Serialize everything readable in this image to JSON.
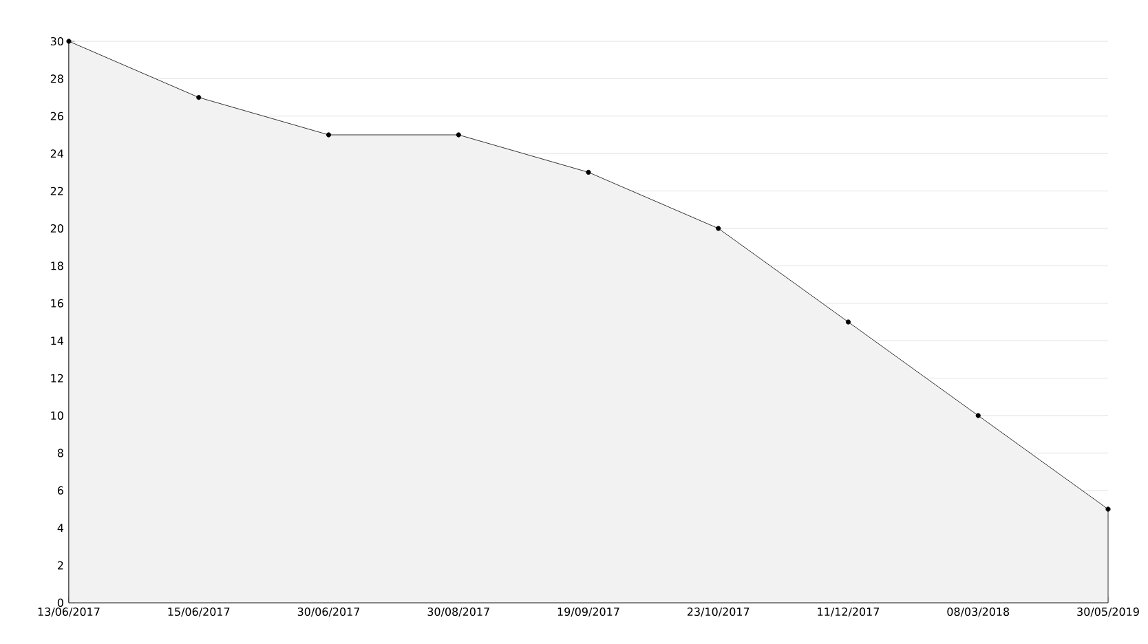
{
  "chart_data": {
    "type": "area",
    "categories": [
      "13/06/2017",
      "15/06/2017",
      "30/06/2017",
      "30/08/2017",
      "19/09/2017",
      "23/10/2017",
      "11/12/2017",
      "08/03/2018",
      "30/05/2019"
    ],
    "values": [
      30,
      27,
      25,
      25,
      23,
      20,
      15,
      10,
      5
    ],
    "color": "#f2f2f2",
    "ylim": [
      0,
      30
    ],
    "yticks": [
      0,
      2,
      4,
      6,
      8,
      10,
      12,
      14,
      16,
      18,
      20,
      22,
      24,
      26,
      28,
      30
    ],
    "grid": "y",
    "marker": "circle",
    "line_style": "solid"
  }
}
